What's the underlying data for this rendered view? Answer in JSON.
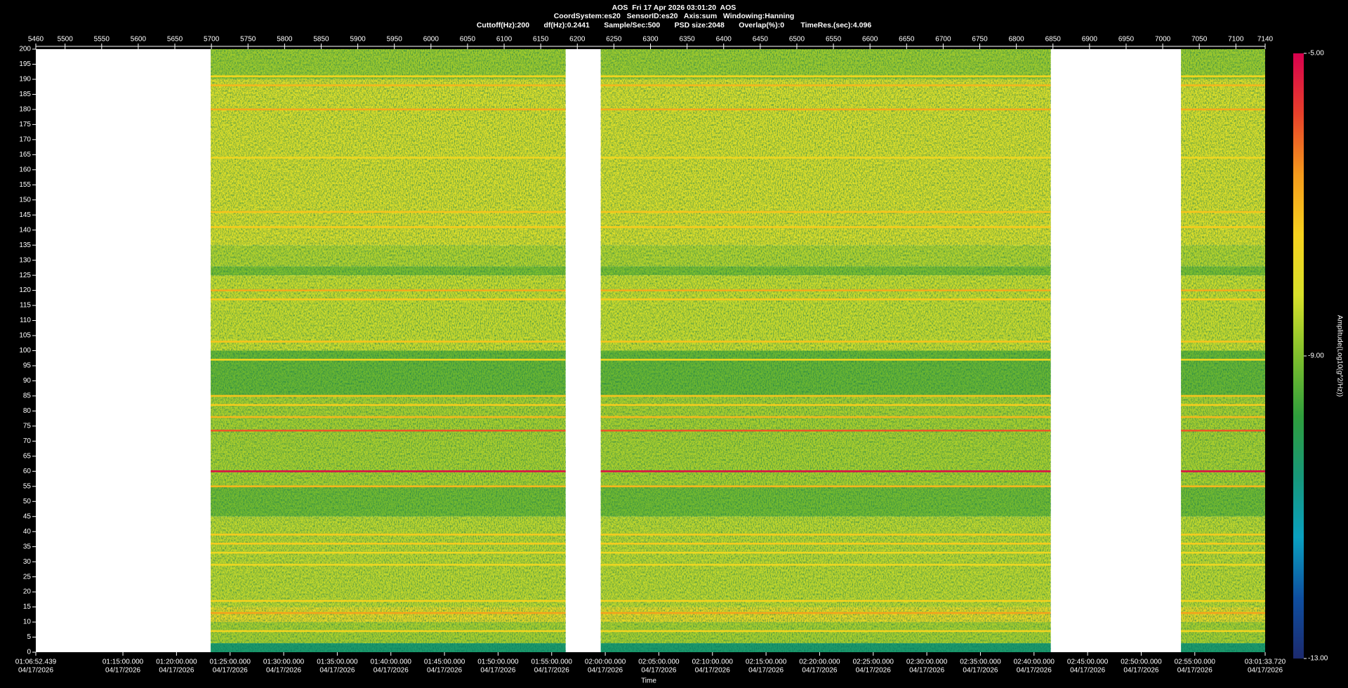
{
  "chart_data": {
    "type": "spectrogram",
    "title_lines": [
      "AOS  Fri 17 Apr 2026 03:01:20  AOS",
      "CoordSystem:es20   SensorID:es20   Axis:sum   Windowing:Hanning",
      "Cuttoff(Hz):200       df(Hz):0.2441       Sample/Sec:500       PSD size:2048       Overlap(%):0        TimeRes.(sec):4.096"
    ],
    "xlabel": "Time",
    "colorbar_label": "Amplitude(Log10(g^2/Hz))",
    "xlim": [
      5460,
      7140
    ],
    "xticks": [
      5460,
      5500,
      5550,
      5600,
      5650,
      5700,
      5750,
      5800,
      5850,
      5900,
      5950,
      6000,
      6050,
      6100,
      6150,
      6200,
      6250,
      6300,
      6350,
      6400,
      6450,
      6500,
      6550,
      6600,
      6650,
      6700,
      6750,
      6800,
      6850,
      6900,
      6950,
      7000,
      7050,
      7100,
      7140
    ],
    "time_ticks": [
      {
        "value": 5460,
        "label": "01:06:52.439",
        "date": "04/17/2026"
      },
      {
        "value": 5579.03,
        "label": "01:15:00.000",
        "date": "04/17/2026"
      },
      {
        "value": 5652.27,
        "label": "01:20:00.000",
        "date": "04/17/2026"
      },
      {
        "value": 5725.51,
        "label": "01:25:00.000",
        "date": "04/17/2026"
      },
      {
        "value": 5798.75,
        "label": "01:30:00.000",
        "date": "04/17/2026"
      },
      {
        "value": 5871.99,
        "label": "01:35:00.000",
        "date": "04/17/2026"
      },
      {
        "value": 5945.24,
        "label": "01:40:00.000",
        "date": "04/17/2026"
      },
      {
        "value": 6018.48,
        "label": "01:45:00.000",
        "date": "04/17/2026"
      },
      {
        "value": 6091.72,
        "label": "01:50:00.000",
        "date": "04/17/2026"
      },
      {
        "value": 6164.96,
        "label": "01:55:00.000",
        "date": "04/17/2026"
      },
      {
        "value": 6238.2,
        "label": "02:00:00.000",
        "date": "04/17/2026"
      },
      {
        "value": 6311.44,
        "label": "02:05:00.000",
        "date": "04/17/2026"
      },
      {
        "value": 6384.68,
        "label": "02:10:00.000",
        "date": "04/17/2026"
      },
      {
        "value": 6457.92,
        "label": "02:15:00.000",
        "date": "04/17/2026"
      },
      {
        "value": 6531.16,
        "label": "02:20:00.000",
        "date": "04/17/2026"
      },
      {
        "value": 6604.41,
        "label": "02:25:00.000",
        "date": "04/17/2026"
      },
      {
        "value": 6677.65,
        "label": "02:30:00.000",
        "date": "04/17/2026"
      },
      {
        "value": 6750.89,
        "label": "02:35:00.000",
        "date": "04/17/2026"
      },
      {
        "value": 6824.13,
        "label": "02:40:00.000",
        "date": "04/17/2026"
      },
      {
        "value": 6897.37,
        "label": "02:45:00.000",
        "date": "04/17/2026"
      },
      {
        "value": 6970.61,
        "label": "02:50:00.000",
        "date": "04/17/2026"
      },
      {
        "value": 7043.85,
        "label": "02:55:00.000",
        "date": "04/17/2026"
      },
      {
        "value": 7140,
        "label": "03:01:33.720",
        "date": "04/17/2026"
      }
    ],
    "ylim": [
      0,
      200
    ],
    "yticks": [
      0,
      5,
      10,
      15,
      20,
      25,
      30,
      35,
      40,
      45,
      50,
      55,
      60,
      65,
      70,
      75,
      80,
      85,
      90,
      95,
      100,
      105,
      110,
      115,
      120,
      125,
      130,
      135,
      140,
      145,
      150,
      155,
      160,
      165,
      170,
      175,
      180,
      185,
      190,
      195,
      200
    ],
    "clim": [
      -13,
      -5
    ],
    "cticks": [
      {
        "value": -13,
        "label": "-13.00"
      },
      {
        "value": -9,
        "label": "-9.00"
      },
      {
        "value": -5,
        "label": "-5.00"
      }
    ],
    "colormap": [
      "#1c2a6e",
      "#0e4fa0",
      "#0aa0c0",
      "#17987a",
      "#2f9e3c",
      "#7fbf2c",
      "#d8e02a",
      "#f7d21e",
      "#f59a1c",
      "#e8402a",
      "#d8004e"
    ],
    "segments": [
      [
        5699,
        6184
      ],
      [
        6232,
        6847
      ],
      [
        7025,
        7140
      ]
    ],
    "bands": [
      {
        "from": 0,
        "to": 3,
        "value": -10.4
      },
      {
        "from": 3,
        "to": 10,
        "value": -8.6
      },
      {
        "from": 10,
        "to": 15,
        "value": -7.8
      },
      {
        "from": 15,
        "to": 45,
        "value": -8.4
      },
      {
        "from": 45,
        "to": 55,
        "value": -9.1
      },
      {
        "from": 55,
        "to": 85,
        "value": -8.6
      },
      {
        "from": 85,
        "to": 100,
        "value": -9.2
      },
      {
        "from": 100,
        "to": 125,
        "value": -8.3
      },
      {
        "from": 125,
        "to": 128,
        "value": -9.0
      },
      {
        "from": 128,
        "to": 135,
        "value": -8.5
      },
      {
        "from": 135,
        "to": 190,
        "value": -8.1
      },
      {
        "from": 190,
        "to": 200,
        "value": -8.7
      }
    ],
    "lines": [
      {
        "freq": 7,
        "value": -7.5
      },
      {
        "freq": 13,
        "value": -6.7
      },
      {
        "freq": 17,
        "value": -7.4
      },
      {
        "freq": 29,
        "value": -7.6
      },
      {
        "freq": 33,
        "value": -7.6
      },
      {
        "freq": 36,
        "value": -7.3
      },
      {
        "freq": 39,
        "value": -7.3
      },
      {
        "freq": 55,
        "value": -7.0
      },
      {
        "freq": 60,
        "value": -5.2
      },
      {
        "freq": 73.5,
        "value": -6.0
      },
      {
        "freq": 78,
        "value": -7.0
      },
      {
        "freq": 82,
        "value": -7.3
      },
      {
        "freq": 85,
        "value": -7.2
      },
      {
        "freq": 97,
        "value": -7.5
      },
      {
        "freq": 103,
        "value": -7.2
      },
      {
        "freq": 117,
        "value": -7.3
      },
      {
        "freq": 120,
        "value": -6.8
      },
      {
        "freq": 141,
        "value": -7.3
      },
      {
        "freq": 146,
        "value": -7.2
      },
      {
        "freq": 164,
        "value": -7.6
      },
      {
        "freq": 180,
        "value": -6.8
      },
      {
        "freq": 188,
        "value": -7.0
      },
      {
        "freq": 191,
        "value": -7.5
      }
    ]
  }
}
